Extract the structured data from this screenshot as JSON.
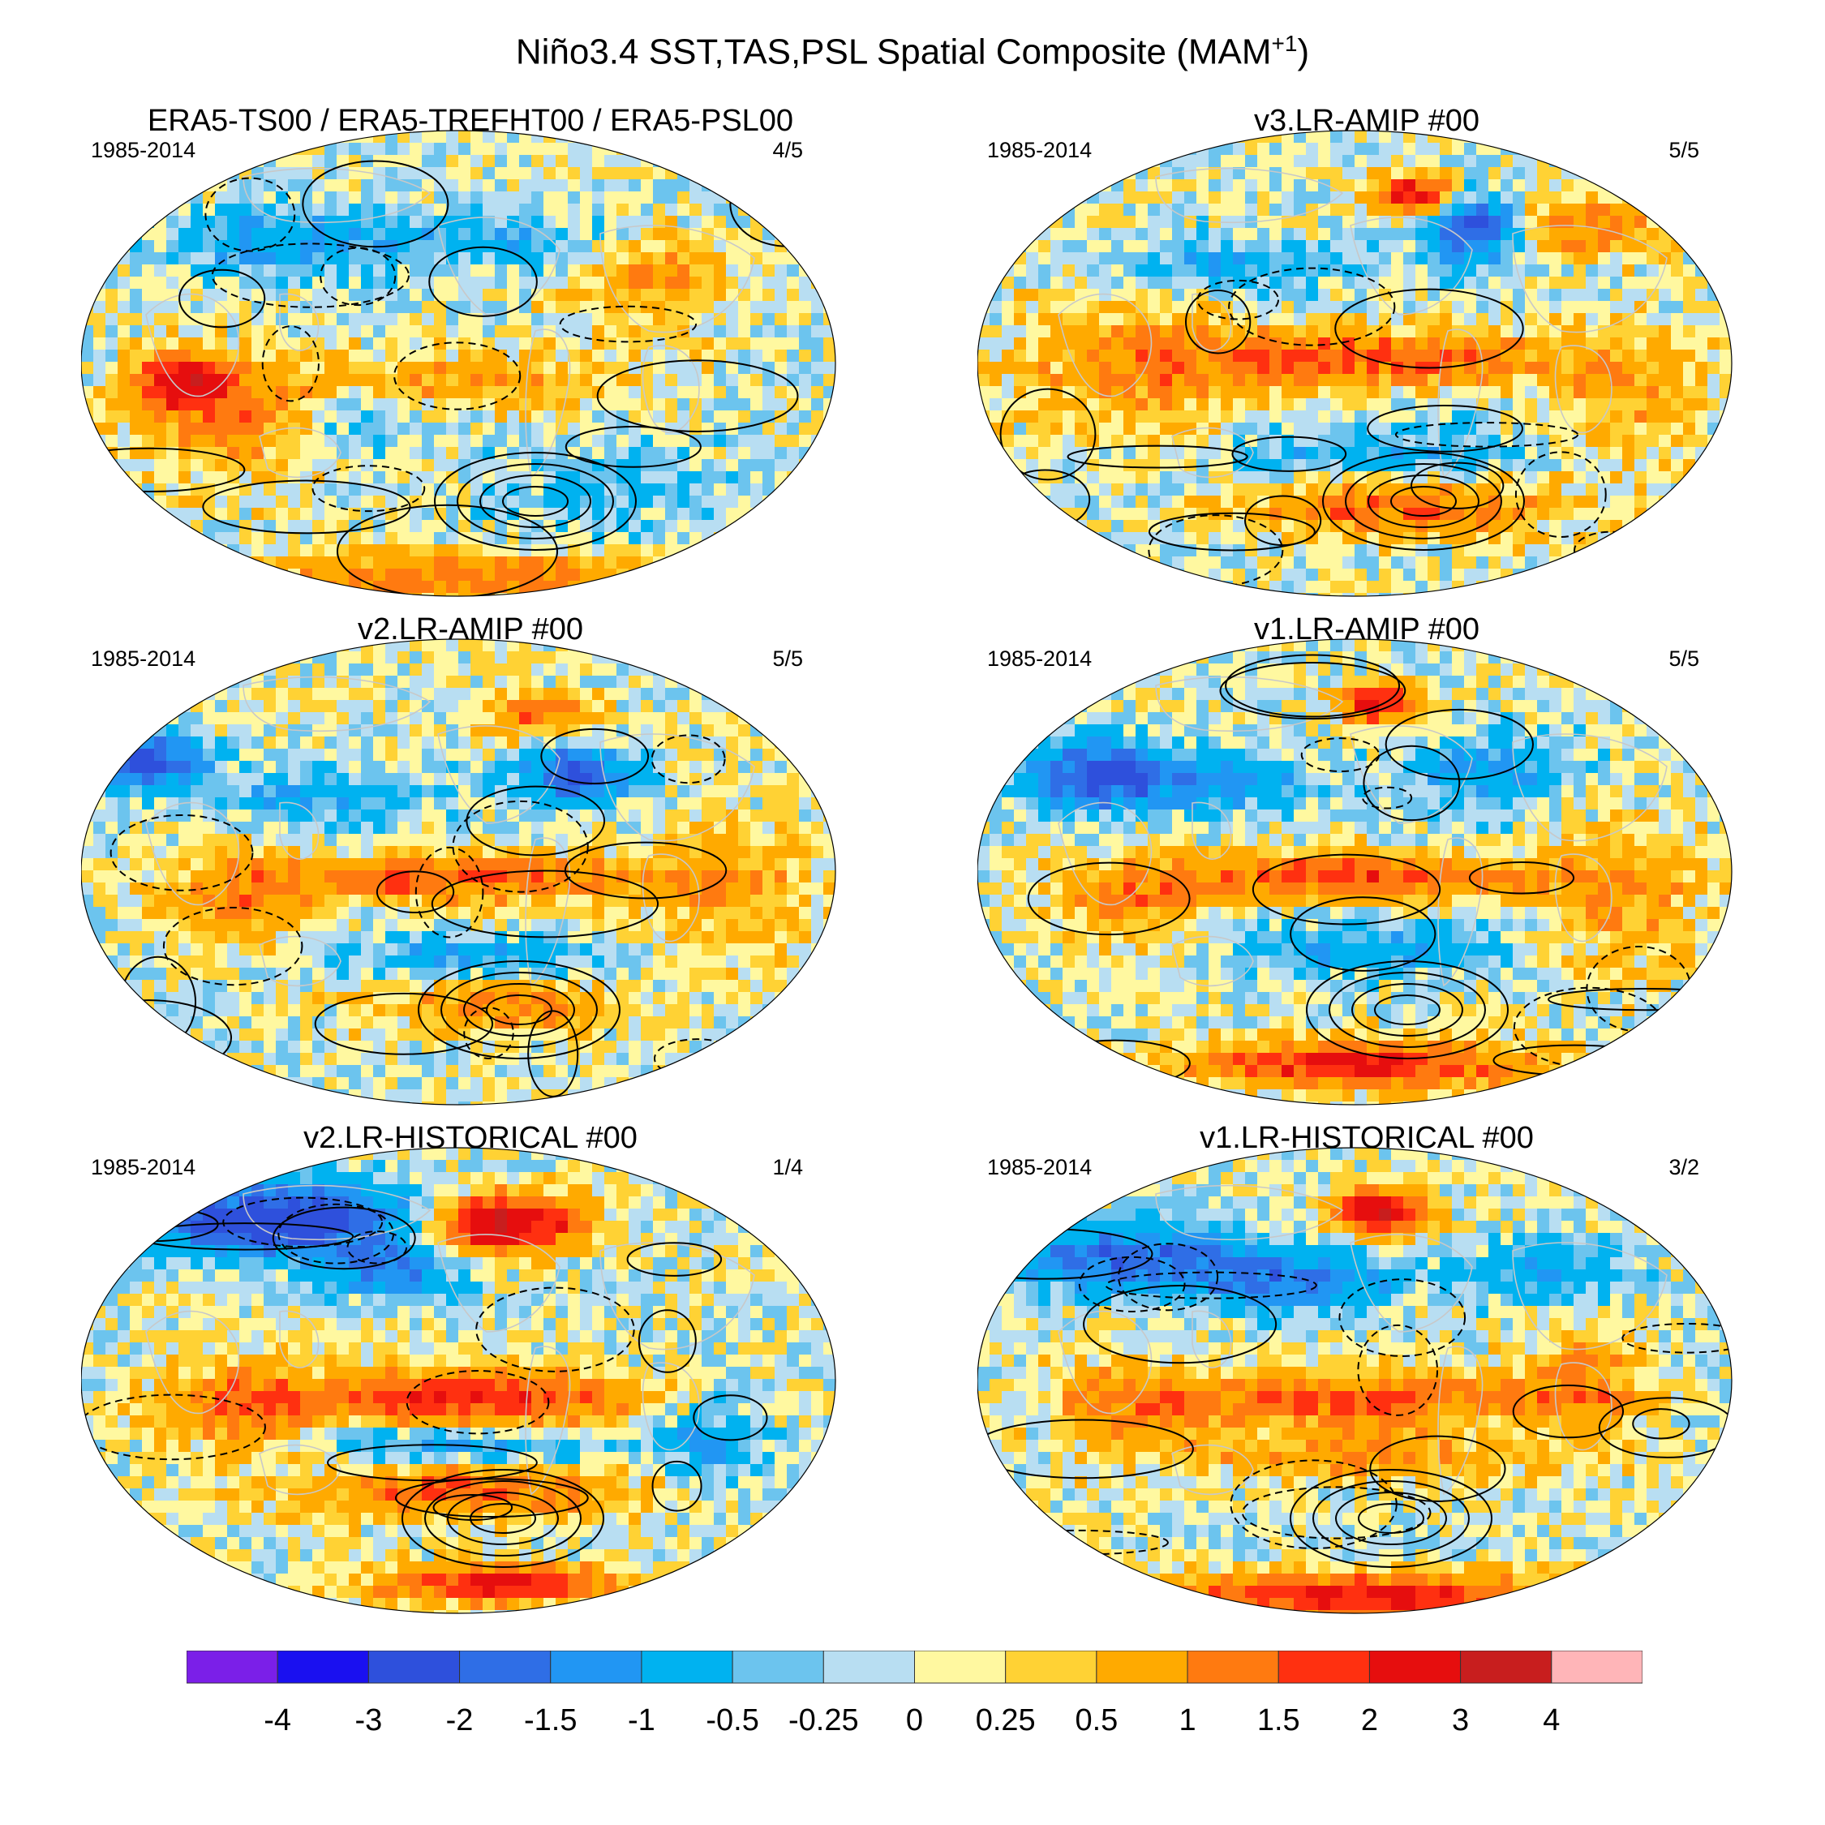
{
  "figure": {
    "title_base": "Niño3.4 SST,TAS,PSL Spatial Composite (MAM",
    "title_sup": "+1",
    "title_close": ")"
  },
  "colors": {
    "levels": [
      "#7b1fe8",
      "#1a10f0",
      "#2e50dc",
      "#2f6ee6",
      "#2196f3",
      "#00b2f0",
      "#6cc4ee",
      "#b8def2",
      "#fff8a0",
      "#ffd234",
      "#ffaa00",
      "#ff7a10",
      "#ff3010",
      "#e60e0e",
      "#c81e1e",
      "#ffb5b8"
    ],
    "land_outline": "#c8c8c8",
    "contour": "#000000"
  },
  "chart_data": {
    "type": "map-composite",
    "variable": "Niño3.4 SST,TAS,PSL Spatial Composite (MAM+1)",
    "panels": [
      {
        "title": "ERA5-TS00 / ERA5-TREFHT00 / ERA5-PSL00",
        "period": "1985-2014",
        "ratio": "4/5",
        "pattern": 0
      },
      {
        "title": "v3.LR-AMIP  #00",
        "period": "1985-2014",
        "ratio": "5/5",
        "pattern": 1
      },
      {
        "title": "v2.LR-AMIP  #00",
        "period": "1985-2014",
        "ratio": "5/5",
        "pattern": 2
      },
      {
        "title": "v1.LR-AMIP  #00",
        "period": "1985-2014",
        "ratio": "5/5",
        "pattern": 3
      },
      {
        "title": "v2.LR-HISTORICAL  #00",
        "period": "1985-2014",
        "ratio": "1/4",
        "pattern": 4
      },
      {
        "title": "v1.LR-HISTORICAL  #00",
        "period": "1985-2014",
        "ratio": "3/2",
        "pattern": 5
      }
    ],
    "colorbar": {
      "ticks": [
        "-4",
        "-3",
        "-2",
        "-1.5",
        "-1",
        "-0.5",
        "-0.25",
        "0",
        "0.25",
        "0.5",
        "1",
        "1.5",
        "2",
        "3",
        "4"
      ],
      "levels": [
        -4,
        -3,
        -2,
        -1.5,
        -1,
        -0.5,
        -0.25,
        0,
        0.25,
        0.5,
        1,
        1.5,
        2,
        3,
        4
      ]
    }
  }
}
